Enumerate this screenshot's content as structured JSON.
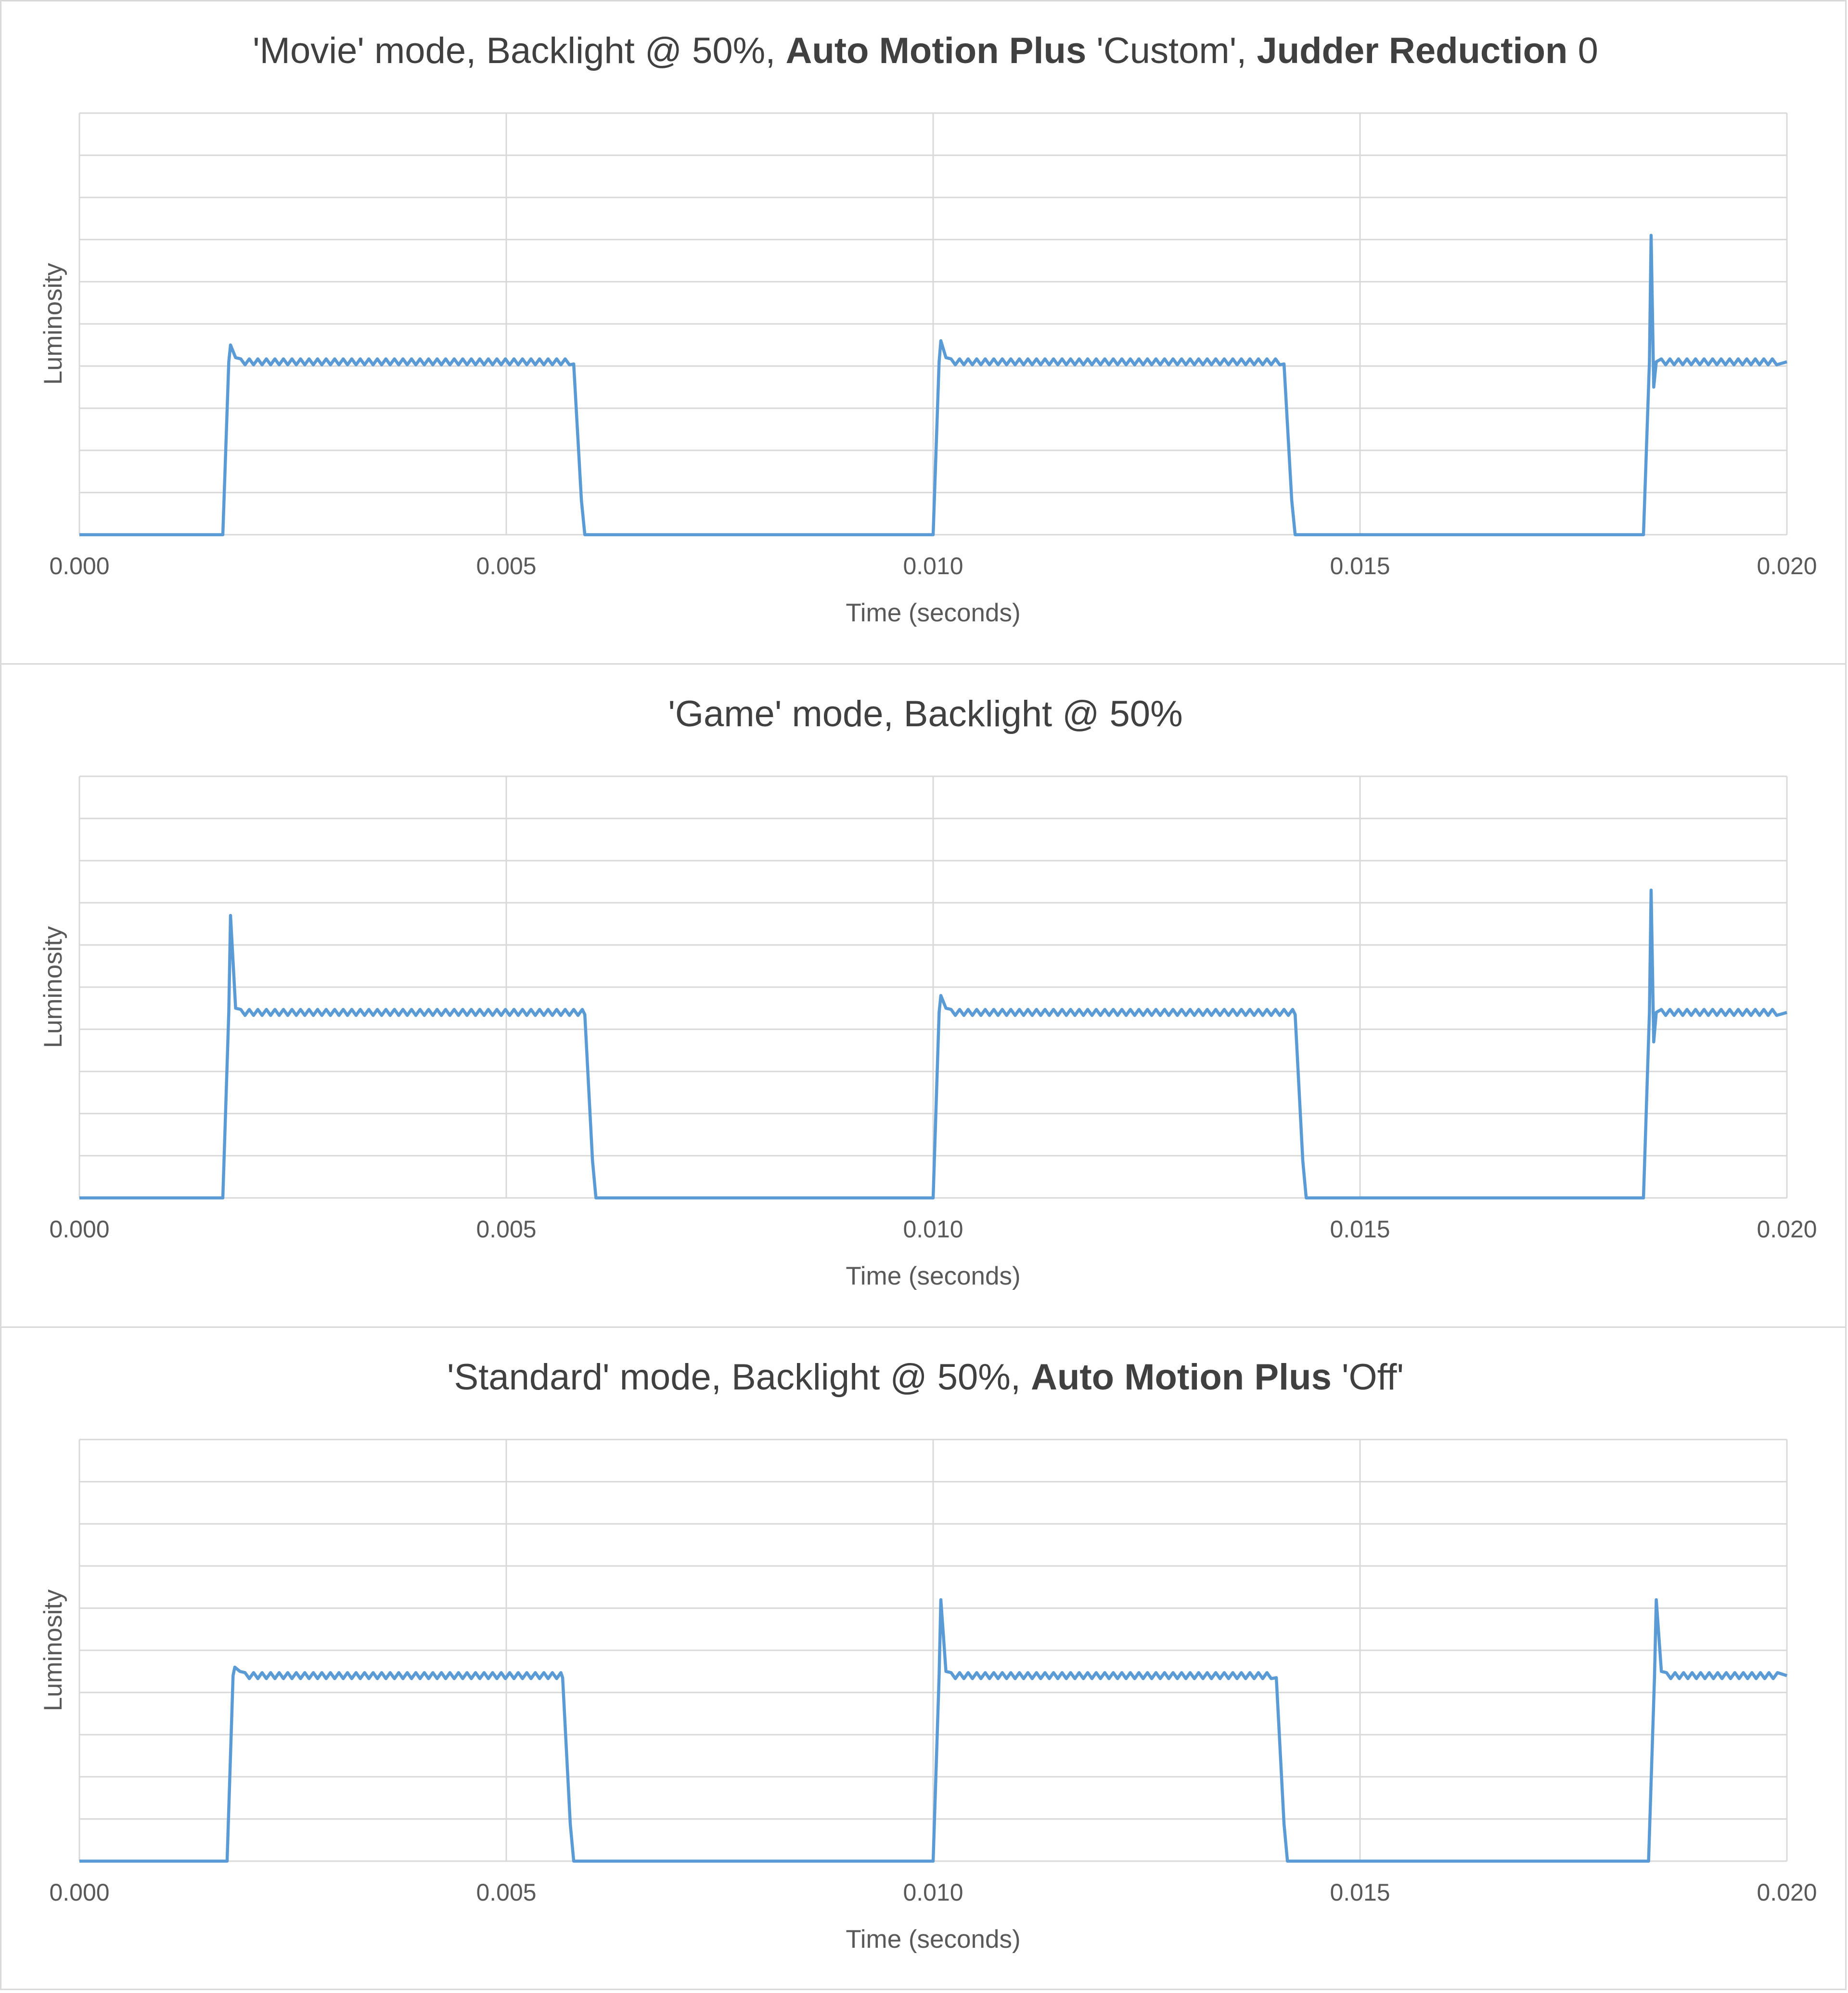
{
  "colors": {
    "series": "#5b9bd5",
    "grid": "#d9d9d9",
    "text": "#404040",
    "tick_text": "#595959"
  },
  "chart_data": [
    {
      "type": "line",
      "title_parts": [
        {
          "text": "'Movie' mode, Backlight @ 50%, ",
          "bold": false
        },
        {
          "text": "Auto Motion Plus",
          "bold": true
        },
        {
          "text": " 'Custom', ",
          "bold": false
        },
        {
          "text": "Judder Reduction",
          "bold": true
        },
        {
          "text": " 0",
          "bold": false
        }
      ],
      "xlabel": "Time (seconds)",
      "ylabel": "Luminosity",
      "xlim": [
        0,
        0.02
      ],
      "ylim": [
        0,
        10
      ],
      "x_ticks": [
        "0.000",
        "0.005",
        "0.010",
        "0.015",
        "0.020"
      ],
      "grid": true,
      "legend": "none",
      "y_tick_labels_shown": false,
      "series": [
        {
          "pulses": [
            {
              "rise": 0.00171,
              "fall": 0.00585,
              "level": 4.1,
              "overshoot": 4.5
            },
            {
              "rise": 0.01003,
              "fall": 0.01417,
              "level": 4.1,
              "overshoot": 4.6
            },
            {
              "rise": 0.01835,
              "fall": null,
              "level": 4.1,
              "overshoot": 7.1,
              "dip": 3.5
            }
          ]
        }
      ]
    },
    {
      "type": "line",
      "title_parts": [
        {
          "text": "'Game' mode, Backlight @ 50%",
          "bold": false
        }
      ],
      "xlabel": "Time (seconds)",
      "ylabel": "Luminosity",
      "xlim": [
        0,
        0.02
      ],
      "ylim": [
        0,
        10
      ],
      "x_ticks": [
        "0.000",
        "0.005",
        "0.010",
        "0.015",
        "0.020"
      ],
      "grid": true,
      "legend": "none",
      "y_tick_labels_shown": false,
      "series": [
        {
          "pulses": [
            {
              "rise": 0.00171,
              "fall": 0.00598,
              "level": 4.4,
              "overshoot": 6.7
            },
            {
              "rise": 0.01003,
              "fall": 0.0143,
              "level": 4.4,
              "overshoot": 4.8
            },
            {
              "rise": 0.01835,
              "fall": null,
              "level": 4.4,
              "overshoot": 7.3,
              "dip": 3.7
            }
          ]
        }
      ]
    },
    {
      "type": "line",
      "title_parts": [
        {
          "text": "'Standard' mode, Backlight @ 50%, ",
          "bold": false
        },
        {
          "text": "Auto Motion Plus",
          "bold": true
        },
        {
          "text": " 'Off'",
          "bold": false
        }
      ],
      "xlabel": "Time (seconds)",
      "ylabel": "Luminosity",
      "xlim": [
        0,
        0.02
      ],
      "ylim": [
        0,
        10
      ],
      "x_ticks": [
        "0.000",
        "0.005",
        "0.010",
        "0.015",
        "0.020"
      ],
      "grid": true,
      "legend": "none",
      "y_tick_labels_shown": false,
      "series": [
        {
          "pulses": [
            {
              "rise": 0.00176,
              "fall": 0.00572,
              "level": 4.4,
              "overshoot": 4.6
            },
            {
              "rise": 0.01003,
              "fall": 0.01408,
              "level": 4.4,
              "overshoot": 6.2
            },
            {
              "rise": 0.01841,
              "fall": null,
              "level": 4.4,
              "overshoot": 6.2
            }
          ]
        }
      ]
    }
  ]
}
